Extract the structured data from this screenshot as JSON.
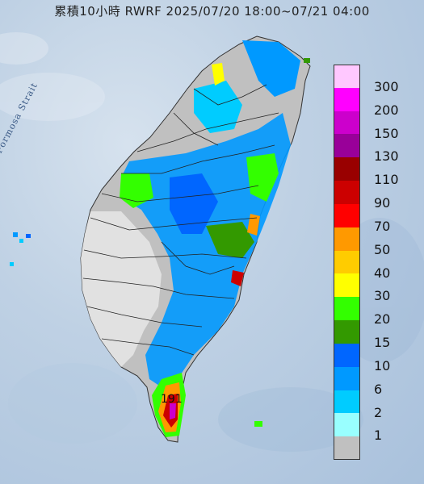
{
  "title": "累積10小時 RWRF 2025/07/20 18:00~07/21 04:00",
  "strait_label": "Formosa Strait",
  "max_value_label": "191",
  "legend": [
    {
      "label": "300",
      "color": "#ffc8ff"
    },
    {
      "label": "200",
      "color": "#ff00ff"
    },
    {
      "label": "150",
      "color": "#cc00cc"
    },
    {
      "label": "130",
      "color": "#990099"
    },
    {
      "label": "110",
      "color": "#990000"
    },
    {
      "label": "90",
      "color": "#cc0000"
    },
    {
      "label": "70",
      "color": "#ff0000"
    },
    {
      "label": "50",
      "color": "#ff9900"
    },
    {
      "label": "40",
      "color": "#ffcc00"
    },
    {
      "label": "30",
      "color": "#ffff00"
    },
    {
      "label": "20",
      "color": "#33ff00"
    },
    {
      "label": "15",
      "color": "#339900"
    },
    {
      "label": "10",
      "color": "#0066ff"
    },
    {
      "label": "6",
      "color": "#0099ff"
    },
    {
      "label": "2",
      "color": "#00ccff"
    },
    {
      "label": "1",
      "color": "#99ffff"
    },
    {
      "label": "",
      "color": "#c0c0c0"
    }
  ]
}
